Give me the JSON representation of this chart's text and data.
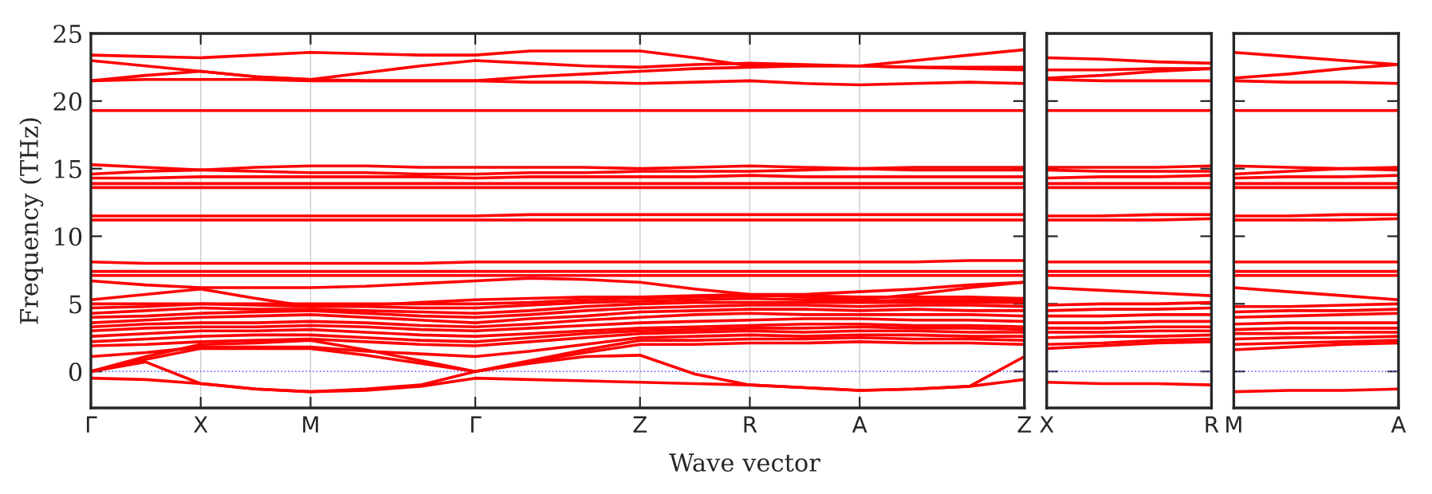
{
  "chart_data": [
    {
      "type": "line",
      "xlabel": "Wave vector",
      "ylabel": "Frequency (THz)",
      "legend": false,
      "grid": "x",
      "marker": "none",
      "line_style": "solid",
      "categories": [
        "Γ",
        null,
        "X",
        null,
        "M",
        null,
        null,
        "Γ",
        null,
        null,
        "Z",
        null,
        "R",
        null,
        "A",
        null,
        null,
        "Z"
      ],
      "ylim": [
        -2.7,
        25
      ],
      "yticks": [
        0,
        5,
        10,
        15,
        20,
        25
      ],
      "ref_lines": [
        {
          "axis": "y",
          "value": 0,
          "color": "#6f6fff",
          "line_style": "dotted"
        }
      ],
      "series": [
        {
          "color": "#ff0000",
          "values": [
            -0.5,
            -0.6,
            -0.9,
            -1.3,
            -1.5,
            -1.4,
            -1.1,
            -0.5,
            -0.6,
            -0.7,
            -0.8,
            -0.9,
            -1.0,
            -1.2,
            -1.4,
            -1.3,
            -1.1,
            -0.6
          ]
        },
        {
          "color": "#ff0000",
          "values": [
            0,
            0.7,
            -0.9,
            -1.3,
            -1.5,
            -1.3,
            -1.0,
            0,
            0.6,
            1.1,
            1.2,
            -0.2,
            -1.0,
            -1.2,
            -1.4,
            -1.3,
            -1.1,
            1.1
          ]
        },
        {
          "color": "#ff0000",
          "values": [
            0,
            0.9,
            1.7,
            1.7,
            1.7,
            1.2,
            0.6,
            0,
            0.7,
            1.4,
            2.0,
            2.0,
            2.1,
            2.1,
            2.2,
            2.1,
            2.1,
            2.0
          ]
        },
        {
          "color": "#ff0000",
          "values": [
            0,
            1.1,
            2.0,
            2.1,
            2.3,
            1.6,
            0.8,
            0,
            0.8,
            1.6,
            2.3,
            2.3,
            2.4,
            2.4,
            2.5,
            2.4,
            2.4,
            2.3
          ]
        },
        {
          "color": "#ff0000",
          "values": [
            1.1,
            1.4,
            1.8,
            1.8,
            1.8,
            1.5,
            1.3,
            1.1,
            1.5,
            2.0,
            2.5,
            2.6,
            2.7,
            2.6,
            2.7,
            2.7,
            2.6,
            2.6
          ]
        },
        {
          "color": "#ff0000",
          "values": [
            1.9,
            2.0,
            2.2,
            2.3,
            2.4,
            2.2,
            2.0,
            1.9,
            2.2,
            2.5,
            2.8,
            2.9,
            3.0,
            2.9,
            3.0,
            3.0,
            2.9,
            2.9
          ]
        },
        {
          "color": "#ff0000",
          "values": [
            2.2,
            2.4,
            2.6,
            2.7,
            2.7,
            2.5,
            2.3,
            2.2,
            2.5,
            2.8,
            3.0,
            3.1,
            3.2,
            3.2,
            3.3,
            3.2,
            3.2,
            3.1
          ]
        },
        {
          "color": "#ff0000",
          "values": [
            2.6,
            2.8,
            3.0,
            3.0,
            3.1,
            2.9,
            2.7,
            2.6,
            2.8,
            3.0,
            3.2,
            3.3,
            3.4,
            3.5,
            3.5,
            3.4,
            3.4,
            3.3
          ]
        },
        {
          "color": "#ff0000",
          "values": [
            3.0,
            3.2,
            3.3,
            3.3,
            3.4,
            3.3,
            3.1,
            3.0,
            3.2,
            3.4,
            3.6,
            3.7,
            3.8,
            3.9,
            3.9,
            3.8,
            3.8,
            3.7
          ]
        },
        {
          "color": "#ff0000",
          "values": [
            3.3,
            3.5,
            3.6,
            3.6,
            3.7,
            3.6,
            3.4,
            3.3,
            3.5,
            3.8,
            4.0,
            4.2,
            4.3,
            4.2,
            4.2,
            4.2,
            4.2,
            4.1
          ]
        },
        {
          "color": "#ff0000",
          "values": [
            3.6,
            3.8,
            4.0,
            4.1,
            4.2,
            4.0,
            3.8,
            3.6,
            3.9,
            4.1,
            4.4,
            4.5,
            4.6,
            4.6,
            4.5,
            4.6,
            4.5,
            4.5
          ]
        },
        {
          "color": "#ff0000",
          "values": [
            4.0,
            4.1,
            4.3,
            4.4,
            4.5,
            4.3,
            4.1,
            4.0,
            4.2,
            4.5,
            4.7,
            4.8,
            4.9,
            4.9,
            4.8,
            4.9,
            4.9,
            4.8
          ]
        },
        {
          "color": "#ff0000",
          "values": [
            4.3,
            4.5,
            4.7,
            4.6,
            4.6,
            4.5,
            4.4,
            4.3,
            4.5,
            4.8,
            5.0,
            5.1,
            5.1,
            5.1,
            5.1,
            5.1,
            5.1,
            5.1
          ]
        },
        {
          "color": "#ff0000",
          "values": [
            4.7,
            4.8,
            5.0,
            4.9,
            4.8,
            4.8,
            4.7,
            4.7,
            4.9,
            5.1,
            5.2,
            5.3,
            5.4,
            5.3,
            5.2,
            5.3,
            5.3,
            5.3
          ]
        },
        {
          "color": "#ff0000",
          "values": [
            5.0,
            5.0,
            5.0,
            5.0,
            5.0,
            5.0,
            5.0,
            5.0,
            5.1,
            5.3,
            5.4,
            5.5,
            5.6,
            5.6,
            5.5,
            5.5,
            5.5,
            5.4
          ]
        },
        {
          "color": "#ff0000",
          "values": [
            5.3,
            5.7,
            6.1,
            5.4,
            4.8,
            4.9,
            5.1,
            5.3,
            5.4,
            5.5,
            5.5,
            5.6,
            5.7,
            5.7,
            5.9,
            6.1,
            6.4,
            6.6
          ]
        },
        {
          "color": "#ff0000",
          "values": [
            6.7,
            6.4,
            6.2,
            6.2,
            6.2,
            6.3,
            6.5,
            6.7,
            6.9,
            6.8,
            6.6,
            6.1,
            5.7,
            5.5,
            5.3,
            5.7,
            6.2,
            6.6
          ]
        },
        {
          "color": "#ff0000",
          "values": [
            7.1,
            7.1,
            7.1,
            7.1,
            7.1,
            7.1,
            7.1,
            7.1,
            7.1,
            7.1,
            7.1,
            7.1,
            7.1,
            7.1,
            7.1,
            7.1,
            7.1,
            7.1
          ]
        },
        {
          "color": "#ff0000",
          "values": [
            7.4,
            7.4,
            7.4,
            7.4,
            7.4,
            7.4,
            7.4,
            7.4,
            7.4,
            7.4,
            7.4,
            7.4,
            7.4,
            7.4,
            7.4,
            7.4,
            7.4,
            7.4
          ]
        },
        {
          "color": "#ff0000",
          "values": [
            8.1,
            8.0,
            8.0,
            8.0,
            8.0,
            8.0,
            8.0,
            8.1,
            8.1,
            8.1,
            8.1,
            8.1,
            8.1,
            8.1,
            8.1,
            8.1,
            8.2,
            8.2
          ]
        },
        {
          "color": "#ff0000",
          "values": [
            11.2,
            11.2,
            11.2,
            11.2,
            11.2,
            11.2,
            11.2,
            11.2,
            11.2,
            11.2,
            11.2,
            11.2,
            11.2,
            11.2,
            11.2,
            11.2,
            11.2,
            11.2
          ]
        },
        {
          "color": "#ff0000",
          "values": [
            11.5,
            11.5,
            11.5,
            11.5,
            11.5,
            11.5,
            11.5,
            11.5,
            11.6,
            11.6,
            11.6,
            11.6,
            11.6,
            11.6,
            11.6,
            11.6,
            11.6,
            11.6
          ]
        },
        {
          "color": "#ff0000",
          "values": [
            13.6,
            13.6,
            13.6,
            13.6,
            13.6,
            13.6,
            13.6,
            13.6,
            13.6,
            13.6,
            13.6,
            13.6,
            13.6,
            13.6,
            13.6,
            13.6,
            13.6,
            13.6
          ]
        },
        {
          "color": "#ff0000",
          "values": [
            13.9,
            13.9,
            13.9,
            13.9,
            13.9,
            13.9,
            13.9,
            13.9,
            13.9,
            13.9,
            13.9,
            13.9,
            13.9,
            13.9,
            13.9,
            13.9,
            13.9,
            13.9
          ]
        },
        {
          "color": "#ff0000",
          "values": [
            14.3,
            14.3,
            14.4,
            14.4,
            14.4,
            14.4,
            14.4,
            14.3,
            14.4,
            14.4,
            14.4,
            14.4,
            14.5,
            14.4,
            14.4,
            14.4,
            14.4,
            14.4
          ]
        },
        {
          "color": "#ff0000",
          "values": [
            14.6,
            14.8,
            14.9,
            14.8,
            14.7,
            14.7,
            14.6,
            14.6,
            14.7,
            14.7,
            14.8,
            14.8,
            14.8,
            14.9,
            15.0,
            14.9,
            14.9,
            14.9
          ]
        },
        {
          "color": "#ff0000",
          "values": [
            15.3,
            15.1,
            14.9,
            15.1,
            15.2,
            15.2,
            15.1,
            15.1,
            15.1,
            15.1,
            15.0,
            15.1,
            15.2,
            15.1,
            15.0,
            15.1,
            15.1,
            15.1
          ]
        },
        {
          "color": "#ff0000",
          "values": [
            19.3,
            19.3,
            19.3,
            19.3,
            19.3,
            19.3,
            19.3,
            19.3,
            19.3,
            19.3,
            19.3,
            19.3,
            19.3,
            19.3,
            19.3,
            19.3,
            19.3,
            19.3
          ]
        },
        {
          "color": "#ff0000",
          "values": [
            23.4,
            23.3,
            23.2,
            23.4,
            23.6,
            23.5,
            23.4,
            23.4,
            23.7,
            23.7,
            23.7,
            23.2,
            22.6,
            22.6,
            22.6,
            23.0,
            23.4,
            23.8
          ]
        },
        {
          "color": "#ff0000",
          "values": [
            23.0,
            22.6,
            22.2,
            21.8,
            21.6,
            22.1,
            22.6,
            23.0,
            22.8,
            22.6,
            22.5,
            22.7,
            22.8,
            22.7,
            22.6,
            22.5,
            22.5,
            22.5
          ]
        },
        {
          "color": "#ff0000",
          "values": [
            21.5,
            21.9,
            22.2,
            21.8,
            21.6,
            21.5,
            21.5,
            21.5,
            21.8,
            22.0,
            22.2,
            22.4,
            22.5,
            22.6,
            22.6,
            22.5,
            22.4,
            22.3
          ]
        },
        {
          "color": "#ff0000",
          "values": [
            21.5,
            21.6,
            21.6,
            21.6,
            21.5,
            21.5,
            21.5,
            21.5,
            21.4,
            21.4,
            21.3,
            21.4,
            21.5,
            21.3,
            21.2,
            21.3,
            21.4,
            21.3
          ]
        }
      ]
    },
    {
      "type": "line",
      "legend": false,
      "marker": "none",
      "line_style": "solid",
      "tick_labels": "x",
      "categories": [
        "X",
        null,
        null,
        "R"
      ],
      "ylim": [
        -2.7,
        25
      ],
      "yticks": [
        0,
        5,
        10,
        15,
        20,
        25
      ],
      "ref_lines": [
        {
          "axis": "y",
          "value": 0,
          "color": "#6f6fff",
          "line_style": "dotted"
        }
      ],
      "series": [
        {
          "color": "#ff0000",
          "values": [
            -0.8,
            -0.9,
            -0.9,
            -1.0
          ]
        },
        {
          "color": "#ff0000",
          "values": [
            1.7,
            1.9,
            2.1,
            2.2
          ]
        },
        {
          "color": "#ff0000",
          "values": [
            2.0,
            2.1,
            2.3,
            2.4
          ]
        },
        {
          "color": "#ff0000",
          "values": [
            2.5,
            2.6,
            2.6,
            2.7
          ]
        },
        {
          "color": "#ff0000",
          "values": [
            2.9,
            2.9,
            3.0,
            3.0
          ]
        },
        {
          "color": "#ff0000",
          "values": [
            3.2,
            3.2,
            3.3,
            3.3
          ]
        },
        {
          "color": "#ff0000",
          "values": [
            3.6,
            3.6,
            3.7,
            3.7
          ]
        },
        {
          "color": "#ff0000",
          "values": [
            4.1,
            4.1,
            4.2,
            4.2
          ]
        },
        {
          "color": "#ff0000",
          "values": [
            4.5,
            4.6,
            4.6,
            4.7
          ]
        },
        {
          "color": "#ff0000",
          "values": [
            4.9,
            5.0,
            5.0,
            5.1
          ]
        },
        {
          "color": "#ff0000",
          "values": [
            6.2,
            6.0,
            5.8,
            5.6
          ]
        },
        {
          "color": "#ff0000",
          "values": [
            7.1,
            7.1,
            7.1,
            7.1
          ]
        },
        {
          "color": "#ff0000",
          "values": [
            7.4,
            7.4,
            7.4,
            7.4
          ]
        },
        {
          "color": "#ff0000",
          "values": [
            8.1,
            8.1,
            8.1,
            8.1
          ]
        },
        {
          "color": "#ff0000",
          "values": [
            11.2,
            11.2,
            11.2,
            11.3
          ]
        },
        {
          "color": "#ff0000",
          "values": [
            11.5,
            11.5,
            11.6,
            11.6
          ]
        },
        {
          "color": "#ff0000",
          "values": [
            13.6,
            13.6,
            13.6,
            13.6
          ]
        },
        {
          "color": "#ff0000",
          "values": [
            13.9,
            13.9,
            13.9,
            13.9
          ]
        },
        {
          "color": "#ff0000",
          "values": [
            14.3,
            14.4,
            14.4,
            14.5
          ]
        },
        {
          "color": "#ff0000",
          "values": [
            14.9,
            14.8,
            14.8,
            14.8
          ]
        },
        {
          "color": "#ff0000",
          "values": [
            15.1,
            15.1,
            15.1,
            15.2
          ]
        },
        {
          "color": "#ff0000",
          "values": [
            19.3,
            19.3,
            19.3,
            19.3
          ]
        },
        {
          "color": "#ff0000",
          "values": [
            23.2,
            23.1,
            22.9,
            22.8
          ]
        },
        {
          "color": "#ff0000",
          "values": [
            22.3,
            22.3,
            22.4,
            22.4
          ]
        },
        {
          "color": "#ff0000",
          "values": [
            21.7,
            21.9,
            22.2,
            22.4
          ]
        },
        {
          "color": "#ff0000",
          "values": [
            21.6,
            21.5,
            21.5,
            21.5
          ]
        }
      ]
    },
    {
      "type": "line",
      "legend": false,
      "marker": "none",
      "line_style": "solid",
      "tick_labels": "x",
      "categories": [
        "M",
        null,
        null,
        "A"
      ],
      "ylim": [
        -2.7,
        25
      ],
      "yticks": [
        0,
        5,
        10,
        15,
        20,
        25
      ],
      "ref_lines": [
        {
          "axis": "y",
          "value": 0,
          "color": "#6f6fff",
          "line_style": "dotted"
        }
      ],
      "series": [
        {
          "color": "#ff0000",
          "values": [
            -1.5,
            -1.4,
            -1.4,
            -1.3
          ]
        },
        {
          "color": "#ff0000",
          "values": [
            1.6,
            1.8,
            2.0,
            2.1
          ]
        },
        {
          "color": "#ff0000",
          "values": [
            2.0,
            2.1,
            2.2,
            2.3
          ]
        },
        {
          "color": "#ff0000",
          "values": [
            2.4,
            2.5,
            2.5,
            2.6
          ]
        },
        {
          "color": "#ff0000",
          "values": [
            2.8,
            2.8,
            2.9,
            2.9
          ]
        },
        {
          "color": "#ff0000",
          "values": [
            3.1,
            3.2,
            3.2,
            3.2
          ]
        },
        {
          "color": "#ff0000",
          "values": [
            3.5,
            3.6,
            3.6,
            3.6
          ]
        },
        {
          "color": "#ff0000",
          "values": [
            4.0,
            4.1,
            4.2,
            4.3
          ]
        },
        {
          "color": "#ff0000",
          "values": [
            4.4,
            4.5,
            4.5,
            4.6
          ]
        },
        {
          "color": "#ff0000",
          "values": [
            4.8,
            4.8,
            4.9,
            5.0
          ]
        },
        {
          "color": "#ff0000",
          "values": [
            6.2,
            5.9,
            5.6,
            5.3
          ]
        },
        {
          "color": "#ff0000",
          "values": [
            7.1,
            7.1,
            7.1,
            7.1
          ]
        },
        {
          "color": "#ff0000",
          "values": [
            7.4,
            7.4,
            7.4,
            7.4
          ]
        },
        {
          "color": "#ff0000",
          "values": [
            8.1,
            8.1,
            8.1,
            8.1
          ]
        },
        {
          "color": "#ff0000",
          "values": [
            11.2,
            11.2,
            11.2,
            11.3
          ]
        },
        {
          "color": "#ff0000",
          "values": [
            11.5,
            11.5,
            11.6,
            11.6
          ]
        },
        {
          "color": "#ff0000",
          "values": [
            13.6,
            13.6,
            13.6,
            13.6
          ]
        },
        {
          "color": "#ff0000",
          "values": [
            13.9,
            13.9,
            13.9,
            13.9
          ]
        },
        {
          "color": "#ff0000",
          "values": [
            14.3,
            14.4,
            14.4,
            14.5
          ]
        },
        {
          "color": "#ff0000",
          "values": [
            15.2,
            15.1,
            15.0,
            14.9
          ]
        },
        {
          "color": "#ff0000",
          "values": [
            14.6,
            14.8,
            15.0,
            15.1
          ]
        },
        {
          "color": "#ff0000",
          "values": [
            19.3,
            19.3,
            19.3,
            19.3
          ]
        },
        {
          "color": "#ff0000",
          "values": [
            23.6,
            23.3,
            23.0,
            22.7
          ]
        },
        {
          "color": "#ff0000",
          "values": [
            21.7,
            22.0,
            22.4,
            22.7
          ]
        },
        {
          "color": "#ff0000",
          "values": [
            21.5,
            21.4,
            21.4,
            21.3
          ]
        }
      ]
    }
  ]
}
